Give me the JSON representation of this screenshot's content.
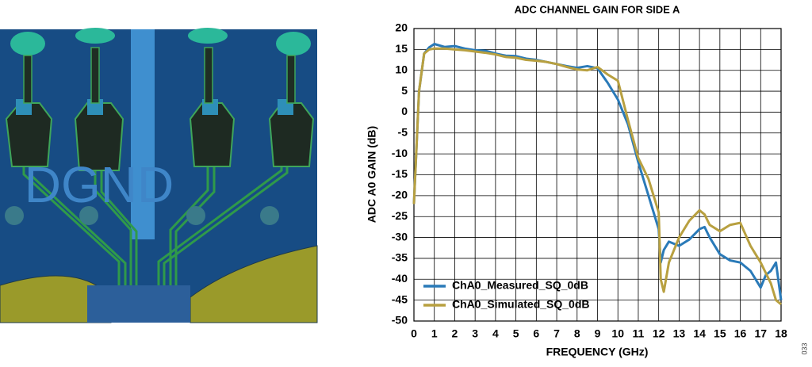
{
  "pcb": {
    "label": "DGND"
  },
  "figure_id": "033",
  "chart_data": {
    "type": "line",
    "title": "ADC CHANNEL GAIN FOR SIDE A",
    "x_label": "FREQUENCY (GHz)",
    "y_label": "ADC A0 GAIN (dB)",
    "x": [
      0,
      0.25,
      0.5,
      0.75,
      1,
      1.5,
      2,
      2.5,
      3,
      3.5,
      4,
      4.5,
      5,
      5.5,
      6,
      6.5,
      7,
      7.5,
      8,
      8.5,
      9,
      9.5,
      10,
      10.5,
      11,
      11.5,
      12,
      12.1,
      12.25,
      12.5,
      13,
      13.5,
      14,
      14.25,
      14.5,
      15,
      15.5,
      16,
      16.5,
      17,
      17.25,
      17.5,
      17.75,
      18
    ],
    "series": [
      {
        "name": "ChA0_Measured_SQ_0dB",
        "color": "#2a7ab8",
        "values": [
          -22,
          5,
          14,
          15.5,
          16.3,
          15.6,
          15.8,
          15.2,
          14.8,
          14.7,
          14,
          13.5,
          13.4,
          12.8,
          12.5,
          12,
          11.5,
          11,
          10.6,
          11,
          10.5,
          7,
          3,
          -3,
          -12,
          -20,
          -28,
          -36,
          -33,
          -31,
          -32,
          -30.5,
          -28,
          -27.5,
          -30,
          -34,
          -35.5,
          -36,
          -38,
          -42,
          -39,
          -38,
          -36,
          -45
        ]
      },
      {
        "name": "ChA0_Simulated_SQ_0dB",
        "color": "#b8a040",
        "values": [
          -22,
          5,
          14,
          15,
          15.2,
          15.2,
          15,
          14.8,
          14.5,
          14.2,
          13.8,
          13.2,
          13,
          12.5,
          12.3,
          12,
          11.5,
          10.8,
          10.2,
          10,
          10.8,
          9,
          7.5,
          -2,
          -11,
          -16,
          -24,
          -40,
          -43,
          -36,
          -30,
          -26,
          -23.5,
          -24.5,
          -27,
          -28.5,
          -27,
          -26.5,
          -32,
          -36,
          -38.5,
          -41,
          -45,
          -46
        ]
      }
    ],
    "xlim": [
      0,
      18
    ],
    "xticks": [
      0,
      1,
      2,
      3,
      4,
      5,
      6,
      7,
      8,
      9,
      10,
      11,
      12,
      13,
      14,
      15,
      16,
      17,
      18
    ],
    "ylim": [
      -50,
      20
    ],
    "yticks": [
      -50,
      -45,
      -40,
      -35,
      -30,
      -25,
      -20,
      -15,
      -10,
      -5,
      0,
      5,
      10,
      15,
      20
    ],
    "grid": true,
    "legend": "lower left"
  }
}
